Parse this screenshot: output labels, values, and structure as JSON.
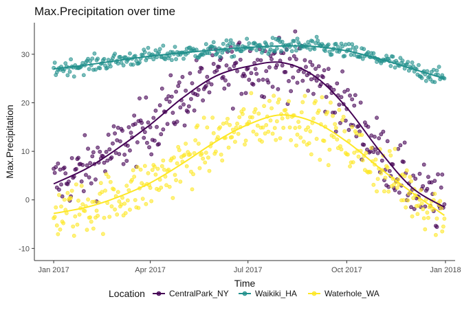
{
  "chart_data": {
    "type": "scatter",
    "title": "Max.Precipitation over time",
    "xlabel": "Time",
    "ylabel": "Max.Precipitation",
    "x_ticks": [
      "Jan 2017",
      "Apr 2017",
      "Jul 2017",
      "Oct 2017",
      "Jan 2018"
    ],
    "y_ticks": [
      -10,
      0,
      10,
      20,
      30
    ],
    "xlim": [
      "2016-12-14",
      "2018-01-10"
    ],
    "ylim": [
      -12.5,
      36.5
    ],
    "grid": false,
    "legend_position": "bottom",
    "legend_title": "Location",
    "smooth": true,
    "series": [
      {
        "name": "CentralPark_NY",
        "color": "#440154",
        "trend": [
          {
            "x": "2017-01-01",
            "y": 3.3
          },
          {
            "x": "2017-02-01",
            "y": 6.5
          },
          {
            "x": "2017-03-01",
            "y": 10.5
          },
          {
            "x": "2017-04-01",
            "y": 15.5
          },
          {
            "x": "2017-05-01",
            "y": 21.0
          },
          {
            "x": "2017-06-01",
            "y": 25.5
          },
          {
            "x": "2017-07-01",
            "y": 27.5
          },
          {
            "x": "2017-08-01",
            "y": 28.3
          },
          {
            "x": "2017-09-01",
            "y": 25.5
          },
          {
            "x": "2017-10-01",
            "y": 19.0
          },
          {
            "x": "2017-11-01",
            "y": 10.0
          },
          {
            "x": "2017-12-01",
            "y": 2.5
          },
          {
            "x": "2017-12-31",
            "y": -1.5
          }
        ],
        "spread": 5.2
      },
      {
        "name": "Waikiki_HA",
        "color": "#21908C",
        "trend": [
          {
            "x": "2017-01-01",
            "y": 27.0
          },
          {
            "x": "2017-02-01",
            "y": 27.8
          },
          {
            "x": "2017-03-01",
            "y": 28.7
          },
          {
            "x": "2017-04-01",
            "y": 29.6
          },
          {
            "x": "2017-05-01",
            "y": 30.3
          },
          {
            "x": "2017-06-01",
            "y": 30.9
          },
          {
            "x": "2017-07-01",
            "y": 31.4
          },
          {
            "x": "2017-08-01",
            "y": 31.7
          },
          {
            "x": "2017-09-01",
            "y": 31.6
          },
          {
            "x": "2017-10-01",
            "y": 30.7
          },
          {
            "x": "2017-11-01",
            "y": 29.0
          },
          {
            "x": "2017-12-01",
            "y": 27.0
          },
          {
            "x": "2017-12-31",
            "y": 25.0
          }
        ],
        "spread": 1.4
      },
      {
        "name": "Waterhole_WA",
        "color": "#FDE725",
        "trend": [
          {
            "x": "2017-01-01",
            "y": -2.8
          },
          {
            "x": "2017-02-01",
            "y": -1.5
          },
          {
            "x": "2017-03-01",
            "y": 0.5
          },
          {
            "x": "2017-04-01",
            "y": 3.5
          },
          {
            "x": "2017-05-01",
            "y": 7.5
          },
          {
            "x": "2017-06-01",
            "y": 12.0
          },
          {
            "x": "2017-07-01",
            "y": 15.5
          },
          {
            "x": "2017-08-01",
            "y": 17.5
          },
          {
            "x": "2017-09-01",
            "y": 16.0
          },
          {
            "x": "2017-10-01",
            "y": 12.0
          },
          {
            "x": "2017-11-01",
            "y": 6.5
          },
          {
            "x": "2017-12-01",
            "y": 1.5
          },
          {
            "x": "2017-12-31",
            "y": -3.2
          }
        ],
        "spread": 4.8
      }
    ]
  }
}
